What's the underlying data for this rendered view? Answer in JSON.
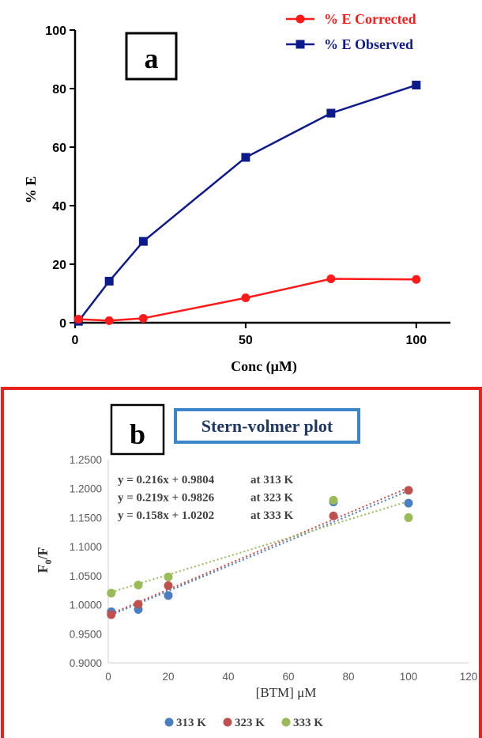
{
  "chart_data": [
    {
      "panel_label": "a",
      "type": "line",
      "xlabel": "Conc (μM)",
      "ylabel": "% E",
      "xlim": [
        0,
        110
      ],
      "ylim": [
        0,
        100
      ],
      "xticks": [
        0,
        50,
        100
      ],
      "yticks": [
        0,
        20,
        40,
        60,
        80,
        100
      ],
      "grid": false,
      "legend_position": "top-right",
      "series": [
        {
          "name": "% E Corrected",
          "color": "#ff1a1a",
          "marker": "circle",
          "x": [
            1,
            10,
            20,
            50,
            75,
            100
          ],
          "y": [
            1.2,
            0.7,
            1.5,
            8.5,
            15,
            14.8
          ]
        },
        {
          "name": "% E Observed",
          "color": "#0d1a8c",
          "marker": "square",
          "x": [
            1,
            10,
            20,
            50,
            75,
            100
          ],
          "y": [
            0.5,
            14.2,
            27.8,
            56.5,
            71.6,
            81.2
          ]
        }
      ]
    },
    {
      "panel_label": "b",
      "type": "scatter",
      "title": "Stern-volmer plot",
      "xlabel": "[BTM] μM",
      "ylabel": "F0/F",
      "ylabel_main": "F",
      "ylabel_sub": "0",
      "ylabel_rest": "/F",
      "xlim": [
        0,
        120
      ],
      "ylim": [
        0.9,
        1.25
      ],
      "xticks": [
        0,
        20,
        40,
        60,
        80,
        100,
        120
      ],
      "yticks": [
        "0.9000",
        "0.9500",
        "1.0000",
        "1.0500",
        "1.1000",
        "1.1500",
        "1.2000",
        "1.2500"
      ],
      "grid": false,
      "legend_position": "bottom",
      "trendlines": "dotted linear",
      "equations": [
        {
          "eq": "y = 0.216x + 0.9804",
          "temp": "at 313 K"
        },
        {
          "eq": "y = 0.219x + 0.9826",
          "temp": "at 323 K"
        },
        {
          "eq": "y = 0.158x + 1.0202",
          "temp": "at 333 K"
        }
      ],
      "series": [
        {
          "name": "313 K",
          "color": "#4a7fc1",
          "x": [
            1,
            10,
            20,
            75,
            100
          ],
          "y": [
            0.988,
            0.992,
            1.016,
            1.177,
            1.175
          ],
          "fit": {
            "slope": 0.00216,
            "intercept": 0.9804
          }
        },
        {
          "name": "323 K",
          "color": "#c0504d",
          "x": [
            1,
            10,
            20,
            75,
            100
          ],
          "y": [
            0.983,
            1.001,
            1.033,
            1.153,
            1.197
          ],
          "fit": {
            "slope": 0.00219,
            "intercept": 0.9826
          }
        },
        {
          "name": "333 K",
          "color": "#9bbb59",
          "x": [
            1,
            10,
            20,
            75,
            100
          ],
          "y": [
            1.02,
            1.034,
            1.048,
            1.18,
            1.15
          ],
          "fit": {
            "slope": 0.00158,
            "intercept": 1.0202
          }
        }
      ]
    }
  ]
}
